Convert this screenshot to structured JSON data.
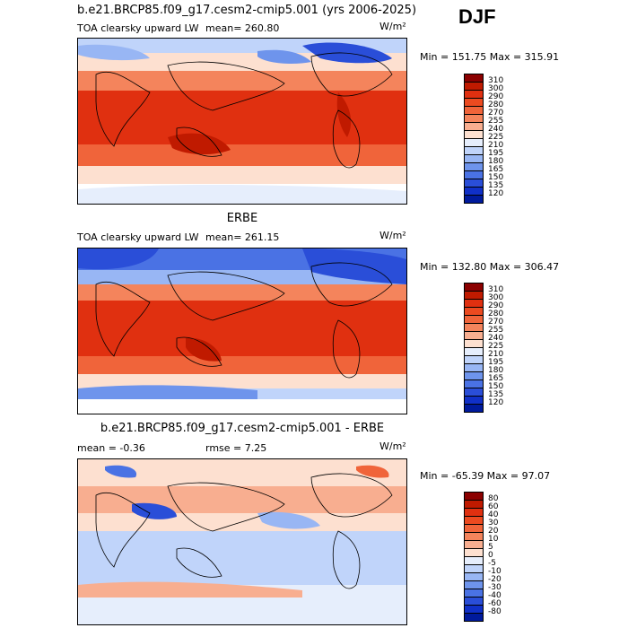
{
  "figure": {
    "season": "DJF"
  },
  "panels": [
    {
      "title": "b.e21.BRCP85.f09_g17.cesm2-cmip5.001 (yrs 2006-2025)",
      "left_label": "TOA clearsky upward LW",
      "mean_label": "mean= 260.80",
      "units": "W/m²",
      "minmax": "Min = 151.75 Max = 315.91",
      "levels": [
        "310",
        "300",
        "290",
        "280",
        "270",
        "255",
        "240",
        "225",
        "210",
        "195",
        "180",
        "165",
        "150",
        "135",
        "120"
      ]
    },
    {
      "title": "ERBE",
      "left_label": "TOA clearsky upward LW",
      "mean_label": "mean= 261.15",
      "units": "W/m²",
      "minmax": "Min = 132.80 Max = 306.47",
      "levels": [
        "310",
        "300",
        "290",
        "280",
        "270",
        "255",
        "240",
        "225",
        "210",
        "195",
        "180",
        "165",
        "150",
        "135",
        "120"
      ]
    },
    {
      "title": "b.e21.BRCP85.f09_g17.cesm2-cmip5.001 - ERBE",
      "left_label": "mean =   -0.36",
      "mean_label": "rmse =    7.25",
      "units": "W/m²",
      "minmax": "Min = -65.39 Max =  97.07",
      "levels": [
        "80",
        "60",
        "40",
        "30",
        "20",
        "10",
        "5",
        "0",
        "-5",
        "-10",
        "-20",
        "-30",
        "-40",
        "-60",
        "-80"
      ]
    }
  ],
  "colors": {
    "abs_scale": [
      "#8b0000",
      "#c01a00",
      "#e03010",
      "#ec4a20",
      "#f0643a",
      "#f4845c",
      "#f8ae90",
      "#fde0d0",
      "#e6eefc",
      "#c0d4fa",
      "#98b6f4",
      "#6e94ec",
      "#4a72e4",
      "#2a4ed8",
      "#1030c8",
      "#001a9c"
    ],
    "diff_scale": [
      "#8b0000",
      "#c01a00",
      "#e03010",
      "#ec4a20",
      "#f0643a",
      "#f4845c",
      "#f8ae90",
      "#fde0d0",
      "#e6eefc",
      "#c0d4fa",
      "#98b6f4",
      "#6e94ec",
      "#4a72e4",
      "#2a4ed8",
      "#1030c8",
      "#001a9c"
    ]
  },
  "chart_data": [
    {
      "type": "heatmap",
      "title": "b.e21.BRCP85.f09_g17.cesm2-cmip5.001 (yrs 2006-2025)",
      "variable": "TOA clearsky upward LW",
      "units": "W/m²",
      "mean": 260.8,
      "min": 151.75,
      "max": 315.91,
      "levels": [
        120,
        135,
        150,
        165,
        180,
        195,
        210,
        225,
        240,
        255,
        270,
        280,
        290,
        300,
        310
      ]
    },
    {
      "type": "heatmap",
      "title": "ERBE",
      "variable": "TOA clearsky upward LW",
      "units": "W/m²",
      "mean": 261.15,
      "min": 132.8,
      "max": 306.47,
      "levels": [
        120,
        135,
        150,
        165,
        180,
        195,
        210,
        225,
        240,
        255,
        270,
        280,
        290,
        300,
        310
      ]
    },
    {
      "type": "heatmap",
      "title": "b.e21.BRCP85.f09_g17.cesm2-cmip5.001 - ERBE",
      "units": "W/m²",
      "mean": -0.36,
      "rmse": 7.25,
      "min": -65.39,
      "max": 97.07,
      "levels": [
        -80,
        -60,
        -40,
        -30,
        -20,
        -10,
        -5,
        0,
        5,
        10,
        20,
        30,
        40,
        60,
        80
      ]
    }
  ]
}
